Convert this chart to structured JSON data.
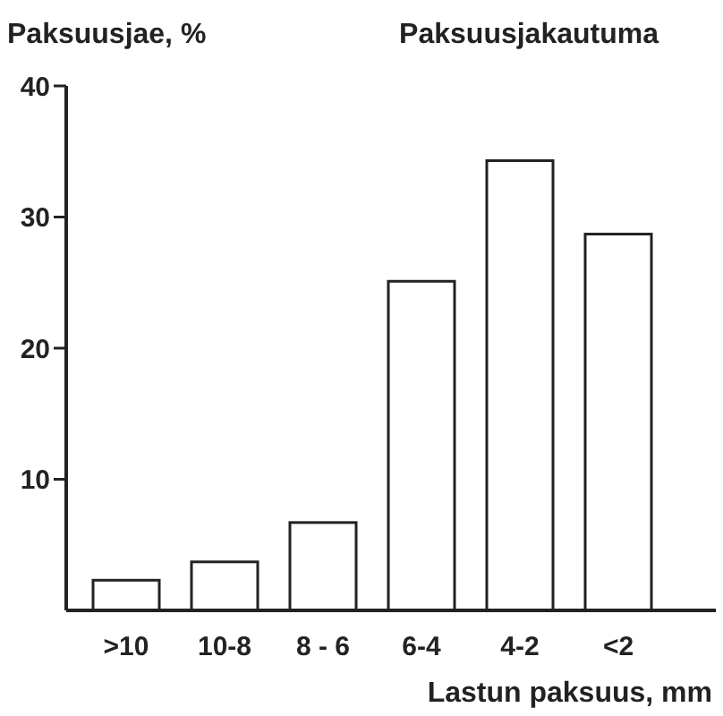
{
  "chart_data": {
    "type": "bar",
    "title": "Paksuusjakautuma",
    "ylabel": "Paksuusjae, %",
    "xlabel": "Lastun paksuus, mm",
    "categories": [
      ">10",
      "10-8",
      "8 - 6",
      "6-4",
      "4-2",
      "<2"
    ],
    "values": [
      2.3,
      3.7,
      6.7,
      25.1,
      34.3,
      28.7
    ],
    "color": "#ffffff",
    "ylim": [
      0,
      40
    ],
    "yticks": [
      10,
      20,
      30,
      40
    ],
    "grid": false
  }
}
